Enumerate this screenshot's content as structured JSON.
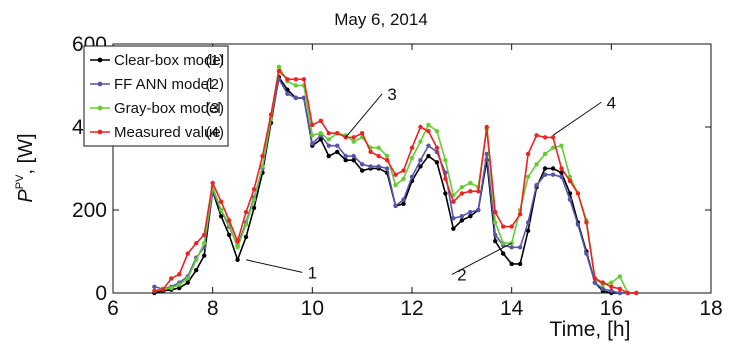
{
  "chart_data": {
    "type": "line",
    "title": "May 6, 2014",
    "xlabel": "Time, [h]",
    "ylabel_main": "P",
    "ylabel_sup": "PV",
    "ylabel_rest": ", [W]",
    "xlim": [
      6,
      18
    ],
    "ylim": [
      0,
      600
    ],
    "xticks": [
      "6",
      "8",
      "10",
      "12",
      "14",
      "16",
      "18"
    ],
    "yticks": [
      "0",
      "200",
      "400",
      "600"
    ],
    "grid": false,
    "legend_position": "top-left",
    "x": [
      6.83,
      7.0,
      7.17,
      7.33,
      7.5,
      7.67,
      7.83,
      8.0,
      8.17,
      8.33,
      8.5,
      8.67,
      8.83,
      9.0,
      9.17,
      9.33,
      9.5,
      9.67,
      9.83,
      10.0,
      10.17,
      10.33,
      10.5,
      10.67,
      10.83,
      11.0,
      11.17,
      11.33,
      11.5,
      11.67,
      11.83,
      12.0,
      12.17,
      12.33,
      12.5,
      12.67,
      12.83,
      13.0,
      13.17,
      13.33,
      13.5,
      13.67,
      13.83,
      14.0,
      14.17,
      14.33,
      14.5,
      14.67,
      14.83,
      15.0,
      15.17,
      15.33,
      15.5,
      15.67,
      15.83,
      16.0,
      16.17,
      16.33,
      16.5
    ],
    "series": [
      {
        "name": "Clear-box model",
        "marker": "(1)",
        "color": "#000000",
        "values": [
          0,
          5,
          8,
          12,
          25,
          55,
          90,
          245,
          185,
          140,
          80,
          135,
          205,
          290,
          410,
          520,
          490,
          470,
          470,
          355,
          370,
          330,
          340,
          320,
          320,
          295,
          300,
          300,
          290,
          210,
          215,
          270,
          305,
          330,
          315,
          240,
          155,
          175,
          185,
          200,
          320,
          125,
          95,
          70,
          70,
          150,
          255,
          300,
          300,
          290,
          240,
          170,
          100,
          25,
          5,
          0,
          0,
          0,
          0
        ]
      },
      {
        "name": "FF ANN model",
        "marker": "(2)",
        "color": "#5555aa",
        "values": [
          15,
          10,
          15,
          25,
          40,
          85,
          110,
          245,
          200,
          160,
          115,
          170,
          230,
          300,
          420,
          515,
          480,
          470,
          470,
          360,
          380,
          355,
          355,
          330,
          330,
          310,
          305,
          305,
          300,
          210,
          225,
          280,
          320,
          355,
          340,
          290,
          180,
          185,
          195,
          200,
          335,
          140,
          115,
          110,
          110,
          170,
          260,
          285,
          285,
          280,
          225,
          165,
          95,
          25,
          10,
          5,
          0,
          0,
          0
        ]
      },
      {
        "name": "Gray-box model",
        "marker": "(3)",
        "color": "#66cc33",
        "values": [
          5,
          10,
          12,
          20,
          35,
          80,
          120,
          255,
          200,
          165,
          110,
          165,
          225,
          305,
          420,
          545,
          510,
          500,
          500,
          380,
          385,
          370,
          385,
          380,
          365,
          375,
          350,
          350,
          330,
          260,
          275,
          325,
          365,
          405,
          390,
          320,
          235,
          255,
          265,
          255,
          395,
          170,
          120,
          120,
          200,
          280,
          310,
          335,
          350,
          355,
          280,
          240,
          175,
          35,
          20,
          25,
          40,
          0,
          0
        ]
      },
      {
        "name": "Measured value",
        "marker": "(4)",
        "color": "#ee2222",
        "values": [
          5,
          8,
          35,
          45,
          95,
          120,
          140,
          265,
          220,
          175,
          125,
          195,
          250,
          330,
          430,
          535,
          515,
          515,
          515,
          405,
          415,
          385,
          385,
          375,
          375,
          385,
          340,
          330,
          320,
          285,
          295,
          350,
          400,
          390,
          350,
          275,
          220,
          240,
          245,
          245,
          400,
          195,
          160,
          160,
          190,
          335,
          380,
          375,
          375,
          300,
          270,
          240,
          170,
          35,
          25,
          15,
          10,
          0,
          0
        ]
      }
    ],
    "annotations": [
      {
        "label": "1",
        "point": [
          8.67,
          80
        ],
        "text_at": [
          10.0,
          40
        ]
      },
      {
        "label": "2",
        "point": [
          14.0,
          120
        ],
        "text_at": [
          13.0,
          35
        ]
      },
      {
        "label": "3",
        "point": [
          10.67,
          375
        ],
        "text_at": [
          11.6,
          470
        ]
      },
      {
        "label": "4",
        "point": [
          14.83,
          380
        ],
        "text_at": [
          16.0,
          450
        ]
      }
    ]
  }
}
